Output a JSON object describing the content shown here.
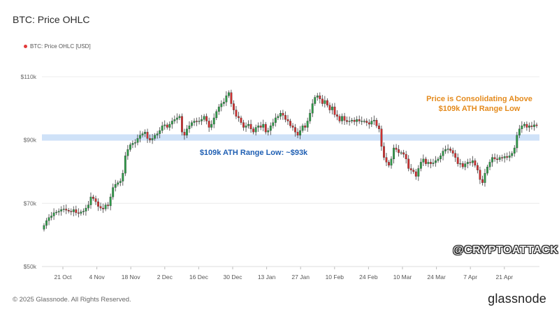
{
  "header": {
    "title": "BTC: Price OHLC"
  },
  "legend": {
    "label": "BTC: Price OHLC [USD]"
  },
  "footer": {
    "copyright": "© 2025 Glassnode. All Rights Reserved.",
    "brand": "glassnode"
  },
  "watermark": "@CRYPTOATTACK",
  "colors": {
    "up": "#2e9a48",
    "down": "#cf2f2f",
    "band": "#cfe2f8",
    "annotation_blue": "#1f5fb3",
    "annotation_orange": "#e48a1c",
    "legend_dot": "#e23a3a"
  },
  "chart_data": {
    "type": "candlestick",
    "title": "BTC: Price OHLC",
    "series_name": "BTC: Price OHLC [USD]",
    "y_ticks": [
      {
        "v": 50000,
        "label": "$50k"
      },
      {
        "v": 70000,
        "label": "$70k"
      },
      {
        "v": 90000,
        "label": "$90k"
      },
      {
        "v": 110000,
        "label": "$110k"
      }
    ],
    "ylim": [
      50000,
      110000
    ],
    "x_ticks": [
      "21 Oct",
      "4 Nov",
      "18 Nov",
      "2 Dec",
      "16 Dec",
      "30 Dec",
      "13 Jan",
      "27 Jan",
      "10 Feb",
      "24 Feb",
      "10 Mar",
      "24 Mar",
      "7 Apr",
      "21 Apr"
    ],
    "grid": true,
    "highlight_band": {
      "from": 89800,
      "to": 91800
    },
    "annotations": [
      {
        "text": "$109k ATH Range Low: ~$93k",
        "color": "annotation_blue"
      },
      {
        "text": "Price is Consolidating Above\n$109k ATH Range Low",
        "color": "annotation_orange"
      }
    ],
    "closes": [
      63000,
      64500,
      65500,
      66000,
      67000,
      67200,
      67500,
      68000,
      68200,
      67800,
      67500,
      67300,
      68000,
      67000,
      66800,
      67300,
      67500,
      68500,
      69500,
      72000,
      71500,
      70500,
      69000,
      68500,
      68200,
      69500,
      69200,
      72000,
      75000,
      76000,
      76500,
      77000,
      79500,
      85000,
      87000,
      88500,
      89000,
      89200,
      90500,
      91500,
      92000,
      92500,
      90500,
      90000,
      90500,
      91500,
      92000,
      93000,
      94500,
      94800,
      94000,
      95000,
      96000,
      96500,
      97000,
      97500,
      92500,
      91500,
      93500,
      94500,
      95500,
      96000,
      95800,
      96000,
      96500,
      97500,
      96000,
      94000,
      95000,
      97000,
      99000,
      100500,
      101500,
      102000,
      104000,
      105000,
      101500,
      99500,
      97500,
      97000,
      95500,
      94000,
      94500,
      95000,
      93500,
      92500,
      94000,
      94500,
      94000,
      95000,
      92500,
      93000,
      94500,
      95500,
      97000,
      97500,
      98500,
      97800,
      96500,
      96000,
      94500,
      94000,
      92500,
      91500,
      93000,
      94500,
      94000,
      96000,
      98500,
      101500,
      103500,
      104000,
      103000,
      101500,
      102500,
      101000,
      99500,
      100500,
      98000,
      97500,
      96000,
      97500,
      96200,
      95800,
      96000,
      96300,
      95800,
      96500,
      96000,
      96000,
      96000,
      95500,
      95000,
      96000,
      96300,
      94500,
      93500,
      88000,
      84500,
      83000,
      82000,
      84000,
      87500,
      87000,
      86000,
      86000,
      85500,
      84000,
      81000,
      80500,
      80000,
      78500,
      81000,
      83000,
      84000,
      82500,
      83000,
      82500,
      82800,
      83500,
      84000,
      85000,
      86500,
      87000,
      87200,
      86700,
      85800,
      84500,
      82500,
      82600,
      81500,
      82500,
      83000,
      82800,
      83500,
      82000,
      80500,
      77500,
      76500,
      79500,
      81500,
      83000,
      84500,
      84000,
      83800,
      84500,
      84300,
      84800,
      84500,
      85000,
      85800,
      87500,
      91500,
      93500,
      94500,
      95000,
      94000,
      94500,
      94200,
      94800,
      94500
    ]
  }
}
